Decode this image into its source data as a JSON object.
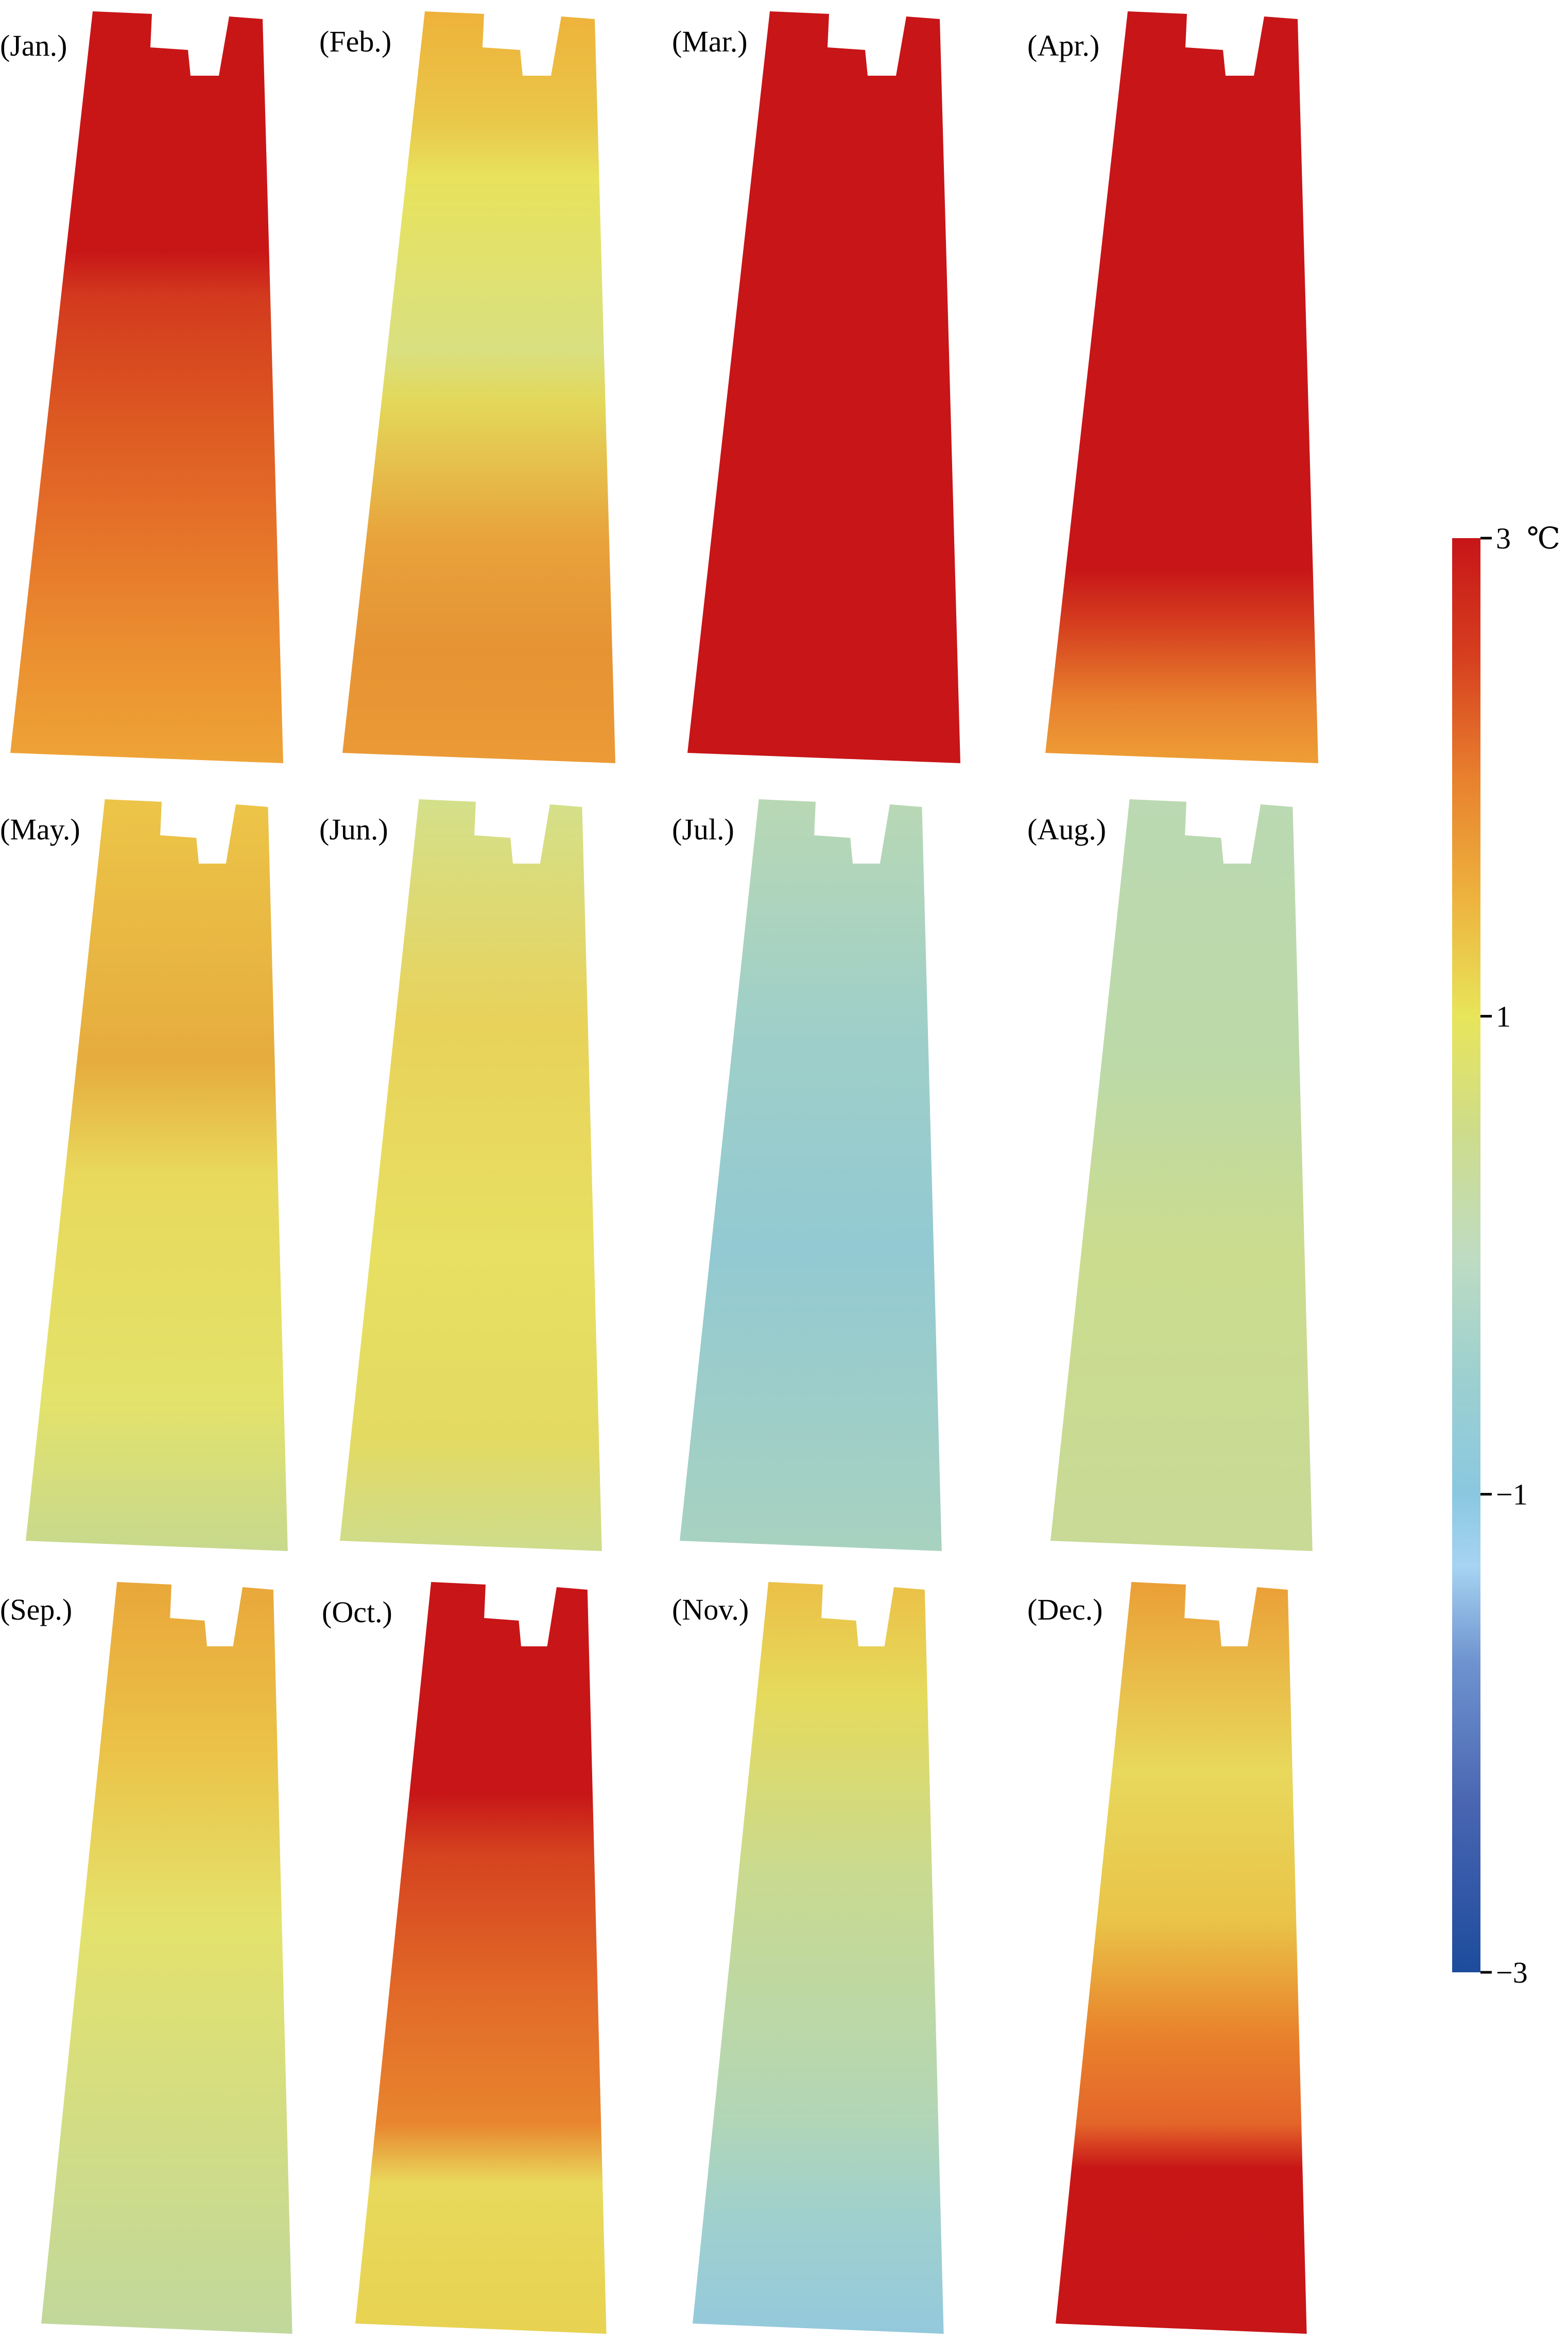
{
  "panels": [
    {
      "label": "(Jan.)",
      "stops": [
        [
          0.0,
          "#c81617"
        ],
        [
          0.32,
          "#c81617"
        ],
        [
          0.38,
          "#d33a1e"
        ],
        [
          0.55,
          "#dd5a22"
        ],
        [
          0.7,
          "#e6742a"
        ],
        [
          0.85,
          "#eb8f30"
        ],
        [
          1.0,
          "#eea437"
        ]
      ]
    },
    {
      "label": "(Feb.)",
      "stops": [
        [
          0.0,
          "#eeb23a"
        ],
        [
          0.15,
          "#e9c84a"
        ],
        [
          0.22,
          "#e8e25c"
        ],
        [
          0.45,
          "#d9e080"
        ],
        [
          0.52,
          "#e3d85a"
        ],
        [
          0.7,
          "#e8a33c"
        ],
        [
          0.85,
          "#e69334"
        ],
        [
          1.0,
          "#eb9a36"
        ]
      ]
    },
    {
      "label": "(Mar.)",
      "stops": [
        [
          0.0,
          "#c71518"
        ],
        [
          1.0,
          "#c71518"
        ]
      ]
    },
    {
      "label": "(Apr.)",
      "stops": [
        [
          0.0,
          "#c71518"
        ],
        [
          0.74,
          "#c71518"
        ],
        [
          0.82,
          "#d6411f"
        ],
        [
          0.92,
          "#e8822e"
        ],
        [
          1.0,
          "#ee9e36"
        ]
      ]
    },
    {
      "label": "(May.)",
      "stops": [
        [
          0.0,
          "#ecc548"
        ],
        [
          0.35,
          "#e6ac3e"
        ],
        [
          0.5,
          "#e8d95c"
        ],
        [
          0.8,
          "#e3e26a"
        ],
        [
          1.0,
          "#c7d98e"
        ]
      ]
    },
    {
      "label": "(Jun.)",
      "stops": [
        [
          0.0,
          "#d4e08a"
        ],
        [
          0.3,
          "#e8d25a"
        ],
        [
          0.6,
          "#e7e062"
        ],
        [
          0.85,
          "#e3da62"
        ],
        [
          1.0,
          "#cedc8c"
        ]
      ]
    },
    {
      "label": "(Jul.)",
      "stops": [
        [
          0.0,
          "#b9d8b4"
        ],
        [
          0.3,
          "#9fcfc8"
        ],
        [
          0.6,
          "#92c9d2"
        ],
        [
          1.0,
          "#a8d2c0"
        ]
      ]
    },
    {
      "label": "(Aug.)",
      "stops": [
        [
          0.0,
          "#bbd9b2"
        ],
        [
          0.35,
          "#bcd9a8"
        ],
        [
          0.6,
          "#cbdc8e"
        ],
        [
          1.0,
          "#c8da96"
        ]
      ]
    },
    {
      "label": "(Sep.)",
      "stops": [
        [
          0.0,
          "#e9a73a"
        ],
        [
          0.22,
          "#ebc247"
        ],
        [
          0.45,
          "#e4e26c"
        ],
        [
          0.75,
          "#d0dc86"
        ],
        [
          1.0,
          "#c1d89c"
        ]
      ]
    },
    {
      "label": "(Oct.)",
      "stops": [
        [
          0.0,
          "#c71518"
        ],
        [
          0.28,
          "#c71518"
        ],
        [
          0.36,
          "#d5421f"
        ],
        [
          0.55,
          "#e26a28"
        ],
        [
          0.72,
          "#e8852e"
        ],
        [
          0.8,
          "#e8d95c"
        ],
        [
          1.0,
          "#e8d251"
        ]
      ]
    },
    {
      "label": "(Nov.)",
      "stops": [
        [
          0.0,
          "#ebc046"
        ],
        [
          0.15,
          "#e5da5c"
        ],
        [
          0.4,
          "#c8da92"
        ],
        [
          0.7,
          "#b3d6b4"
        ],
        [
          0.85,
          "#9fd0ce"
        ],
        [
          1.0,
          "#94c9dc"
        ]
      ]
    },
    {
      "label": "(Dec.)",
      "stops": [
        [
          0.0,
          "#ea9f36"
        ],
        [
          0.25,
          "#e8d85c"
        ],
        [
          0.45,
          "#e9c448"
        ],
        [
          0.6,
          "#e9832c"
        ],
        [
          0.72,
          "#e4662a"
        ],
        [
          0.78,
          "#c81617"
        ],
        [
          1.0,
          "#c71518"
        ]
      ]
    }
  ],
  "colorbar": {
    "unit": "℃",
    "ticks": [
      {
        "value": 3,
        "label": "3"
      },
      {
        "value": 1,
        "label": "1"
      },
      {
        "value": -1,
        "label": "−1"
      },
      {
        "value": -3,
        "label": "−3"
      }
    ],
    "range": [
      -3,
      3
    ],
    "gradient": [
      [
        3,
        "#c71518"
      ],
      [
        2.5,
        "#d63f1f"
      ],
      [
        2,
        "#e8802e"
      ],
      [
        1.5,
        "#edb23d"
      ],
      [
        1,
        "#e8e55a"
      ],
      [
        0.5,
        "#cddc8c"
      ],
      [
        0,
        "#bfdcc2"
      ],
      [
        -0.5,
        "#9dd0cf"
      ],
      [
        -1,
        "#8ac8e0"
      ],
      [
        -1.3,
        "#a6d4f2"
      ],
      [
        -1.7,
        "#6f93cf"
      ],
      [
        -2.3,
        "#4965b1"
      ],
      [
        -3,
        "#1d4c9d"
      ]
    ]
  }
}
